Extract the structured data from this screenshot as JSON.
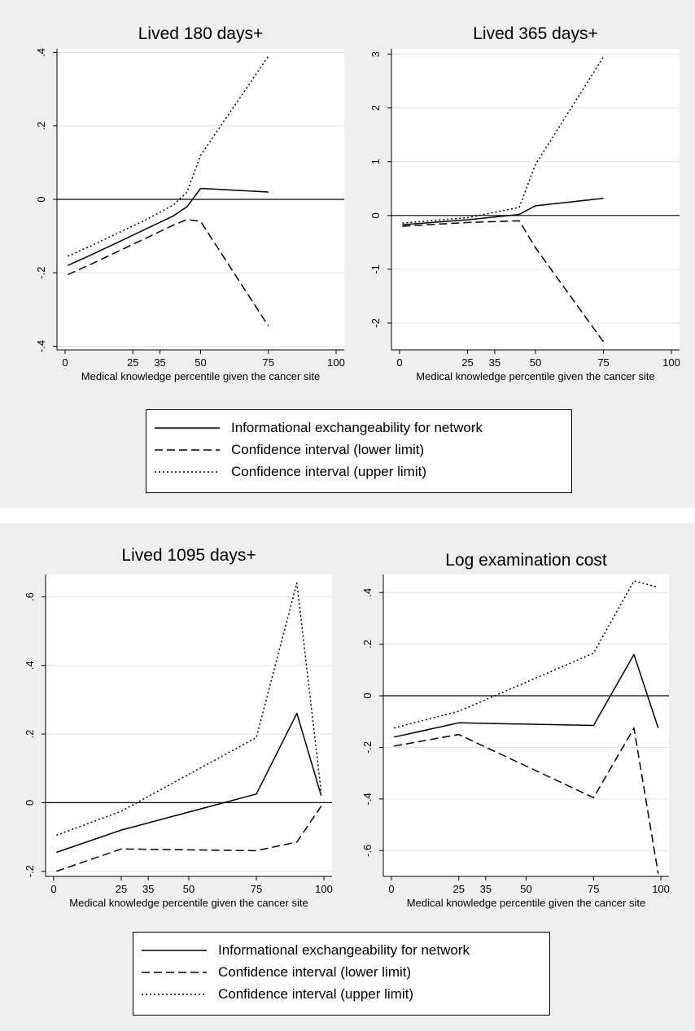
{
  "chart_data": [
    {
      "type": "line",
      "title": "Lived 180 days+",
      "xlabel": "Medical knowledge percentile given the cancer site",
      "ylabel": "",
      "xlim": [
        -3,
        103
      ],
      "ylim": [
        -0.41,
        0.41
      ],
      "xticks": [
        {
          "v": 0,
          "t": "0"
        },
        {
          "v": 25,
          "t": "25"
        },
        {
          "v": 35,
          "t": "35"
        },
        {
          "v": 50,
          "t": "50"
        },
        {
          "v": 75,
          "t": "75"
        },
        {
          "v": 100,
          "t": "100"
        }
      ],
      "yticks": [
        {
          "v": -0.4,
          "t": "-.4"
        },
        {
          "v": -0.2,
          "t": "-.2"
        },
        {
          "v": 0,
          "t": "0"
        },
        {
          "v": 0.2,
          "t": ".2"
        },
        {
          "v": 0.4,
          "t": ".4"
        }
      ],
      "grid": true,
      "series": [
        {
          "name": "Informational exchangeability for network",
          "style": "solid",
          "x": [
            1,
            10,
            20,
            30,
            40,
            45,
            50,
            75
          ],
          "y": [
            -0.18,
            -0.15,
            -0.115,
            -0.08,
            -0.045,
            -0.02,
            0.03,
            0.02
          ]
        },
        {
          "name": "Confidence interval (lower limit)",
          "style": "dashed",
          "x": [
            1,
            10,
            20,
            30,
            40,
            45,
            50,
            75
          ],
          "y": [
            -0.205,
            -0.175,
            -0.14,
            -0.105,
            -0.07,
            -0.055,
            -0.06,
            -0.345
          ]
        },
        {
          "name": "Confidence interval (upper limit)",
          "style": "dotted",
          "x": [
            1,
            10,
            20,
            30,
            40,
            45,
            50,
            75
          ],
          "y": [
            -0.155,
            -0.125,
            -0.09,
            -0.055,
            -0.015,
            0.02,
            0.12,
            0.39
          ]
        }
      ]
    },
    {
      "type": "line",
      "title": "Lived 365 days+",
      "xlabel": "Medical knowledge percentile given the cancer site",
      "ylabel": "",
      "xlim": [
        -3,
        103
      ],
      "ylim": [
        -2.5,
        3.1
      ],
      "xticks": [
        {
          "v": 0,
          "t": "0"
        },
        {
          "v": 25,
          "t": "25"
        },
        {
          "v": 35,
          "t": "35"
        },
        {
          "v": 50,
          "t": "50"
        },
        {
          "v": 75,
          "t": "75"
        },
        {
          "v": 100,
          "t": "100"
        }
      ],
      "yticks": [
        {
          "v": -2,
          "t": "-2"
        },
        {
          "v": -1,
          "t": "-1"
        },
        {
          "v": 0,
          "t": "0"
        },
        {
          "v": 1,
          "t": "1"
        },
        {
          "v": 2,
          "t": "2"
        },
        {
          "v": 3,
          "t": "3"
        }
      ],
      "grid": true,
      "series": [
        {
          "name": "Informational exchangeability for network",
          "style": "solid",
          "x": [
            1,
            25,
            44,
            50,
            75
          ],
          "y": [
            -0.17,
            -0.08,
            0.02,
            0.18,
            0.32
          ]
        },
        {
          "name": "Confidence interval (lower limit)",
          "style": "dashed",
          "x": [
            1,
            25,
            44,
            50,
            75
          ],
          "y": [
            -0.2,
            -0.13,
            -0.1,
            -0.6,
            -2.35
          ]
        },
        {
          "name": "Confidence interval (upper limit)",
          "style": "dotted",
          "x": [
            1,
            25,
            44,
            50,
            75
          ],
          "y": [
            -0.14,
            -0.04,
            0.15,
            0.95,
            2.95
          ]
        }
      ]
    },
    {
      "type": "line",
      "title": "Lived 1095 days+",
      "xlabel": "Medical knowledge percentile given the cancer site",
      "ylabel": "",
      "xlim": [
        -3,
        103
      ],
      "ylim": [
        -0.215,
        0.665
      ],
      "xticks": [
        {
          "v": 0,
          "t": "0"
        },
        {
          "v": 25,
          "t": "25"
        },
        {
          "v": 35,
          "t": "35"
        },
        {
          "v": 50,
          "t": "50"
        },
        {
          "v": 75,
          "t": "75"
        },
        {
          "v": 100,
          "t": "100"
        }
      ],
      "yticks": [
        {
          "v": -0.2,
          "t": "-.2"
        },
        {
          "v": 0,
          "t": "0"
        },
        {
          "v": 0.2,
          "t": ".2"
        },
        {
          "v": 0.4,
          "t": ".4"
        },
        {
          "v": 0.6,
          "t": ".6"
        }
      ],
      "grid": true,
      "series": [
        {
          "name": "Informational exchangeability for network",
          "style": "solid",
          "x": [
            1,
            25,
            75,
            90,
            99
          ],
          "y": [
            -0.145,
            -0.08,
            0.025,
            0.26,
            0.02
          ]
        },
        {
          "name": "Confidence interval (lower limit)",
          "style": "dashed",
          "x": [
            1,
            25,
            75,
            90,
            99
          ],
          "y": [
            -0.2,
            -0.135,
            -0.14,
            -0.115,
            -0.01
          ]
        },
        {
          "name": "Confidence interval (upper limit)",
          "style": "dotted",
          "x": [
            1,
            25,
            75,
            90,
            99
          ],
          "y": [
            -0.095,
            -0.025,
            0.19,
            0.64,
            0.03
          ]
        }
      ]
    },
    {
      "type": "line",
      "title": "Log examination cost",
      "xlabel": "Medical knowledge percentile given the cancer site",
      "ylabel": "",
      "xlim": [
        -3,
        103
      ],
      "ylim": [
        -0.7,
        0.47
      ],
      "xticks": [
        {
          "v": 0,
          "t": "0"
        },
        {
          "v": 25,
          "t": "25"
        },
        {
          "v": 35,
          "t": "35"
        },
        {
          "v": 50,
          "t": "50"
        },
        {
          "v": 75,
          "t": "75"
        },
        {
          "v": 100,
          "t": "100"
        }
      ],
      "yticks": [
        {
          "v": -0.6,
          "t": "-.6"
        },
        {
          "v": -0.4,
          "t": "-.4"
        },
        {
          "v": -0.2,
          "t": "-.2"
        },
        {
          "v": 0,
          "t": "0"
        },
        {
          "v": 0.2,
          "t": ".2"
        },
        {
          "v": 0.4,
          "t": ".4"
        }
      ],
      "grid": true,
      "series": [
        {
          "name": "Informational exchangeability for network",
          "style": "solid",
          "x": [
            1,
            25,
            75,
            90,
            99
          ],
          "y": [
            -0.16,
            -0.105,
            -0.115,
            0.16,
            -0.125
          ]
        },
        {
          "name": "Confidence interval (lower limit)",
          "style": "dashed",
          "x": [
            1,
            25,
            75,
            90,
            99
          ],
          "y": [
            -0.195,
            -0.15,
            -0.395,
            -0.125,
            -0.69
          ]
        },
        {
          "name": "Confidence interval (upper limit)",
          "style": "dotted",
          "x": [
            1,
            25,
            75,
            90,
            99
          ],
          "y": [
            -0.125,
            -0.06,
            0.165,
            0.445,
            0.42
          ]
        }
      ]
    }
  ],
  "legends": [
    {
      "items": [
        {
          "label": "Informational exchangeability for network",
          "style": "solid"
        },
        {
          "label": "Confidence interval (lower limit)",
          "style": "dashed"
        },
        {
          "label": "Confidence interval (upper limit)",
          "style": "dotted"
        }
      ]
    },
    {
      "items": [
        {
          "label": "Informational exchangeability for network",
          "style": "solid"
        },
        {
          "label": "Confidence interval (lower limit)",
          "style": "dashed"
        },
        {
          "label": "Confidence interval (upper limit)",
          "style": "dotted"
        }
      ]
    }
  ],
  "colors": {
    "panel_background": "#efefef",
    "plot_background": "#ffffff",
    "line": "#000000",
    "grid": "#e2e2e2"
  }
}
